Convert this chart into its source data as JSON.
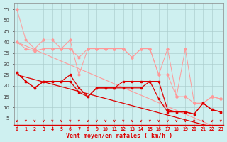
{
  "xlabel": "Vent moyen/en rafales ( km/h )",
  "background_color": "#cef0f0",
  "grid_color": "#aacccc",
  "x": [
    0,
    1,
    2,
    3,
    4,
    5,
    6,
    7,
    8,
    9,
    10,
    11,
    12,
    13,
    14,
    15,
    16,
    17,
    18,
    19,
    20,
    21,
    22,
    23
  ],
  "light_line1": [
    55,
    41,
    37,
    41,
    41,
    37,
    41,
    25,
    37,
    37,
    37,
    37,
    37,
    33,
    37,
    37,
    25,
    37,
    15,
    37,
    12,
    12,
    15,
    14
  ],
  "light_line2": [
    40,
    37,
    36,
    37,
    37,
    37,
    37,
    33,
    37,
    37,
    37,
    37,
    37,
    33,
    37,
    37,
    25,
    25,
    15,
    15,
    12,
    12,
    15,
    14
  ],
  "light_slope": [
    40,
    38.26,
    36.52,
    34.78,
    33.04,
    31.3,
    29.57,
    27.83,
    26.09,
    24.35,
    22.61,
    20.87,
    19.13,
    17.39,
    15.65,
    13.91,
    12.17,
    10.43,
    8.7,
    6.96,
    5.22,
    3.48,
    1.74,
    0.0
  ],
  "dark_line1": [
    26,
    22,
    19,
    22,
    22,
    22,
    25,
    19,
    15,
    19,
    19,
    19,
    22,
    22,
    22,
    22,
    14,
    8,
    8,
    8,
    7,
    12,
    9,
    8
  ],
  "dark_line2": [
    26,
    22,
    19,
    22,
    22,
    22,
    22,
    17,
    15,
    19,
    19,
    19,
    19,
    19,
    19,
    22,
    22,
    9,
    8,
    8,
    7,
    12,
    9,
    8
  ],
  "dark_slope": [
    25,
    23.91,
    22.83,
    21.74,
    20.65,
    19.57,
    18.48,
    17.39,
    16.3,
    15.22,
    14.13,
    13.04,
    11.96,
    10.87,
    9.78,
    8.7,
    7.61,
    6.52,
    5.43,
    4.35,
    3.26,
    2.17,
    1.09,
    0.0
  ],
  "color_light": "#ff9999",
  "color_dark": "#dd0000",
  "yticks": [
    5,
    10,
    15,
    20,
    25,
    30,
    35,
    40,
    45,
    50,
    55
  ],
  "ylim": [
    2,
    58
  ],
  "xlim": [
    -0.3,
    23.3
  ]
}
